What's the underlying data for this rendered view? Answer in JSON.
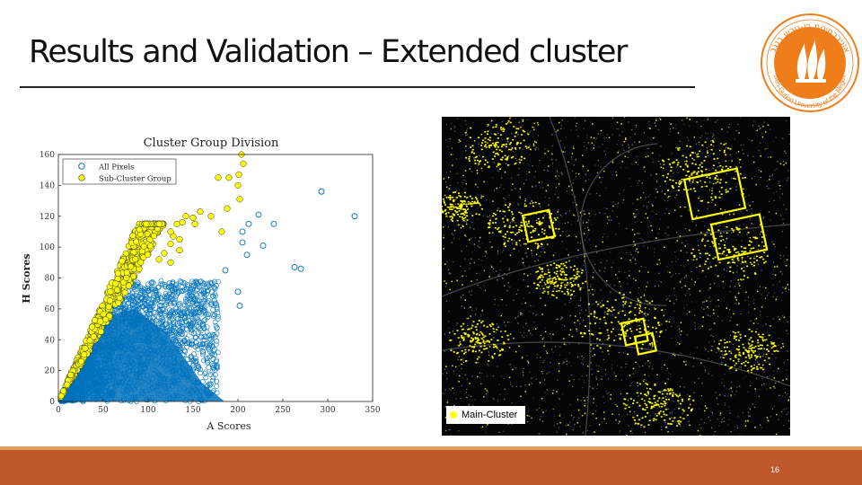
{
  "slide": {
    "title": "Results and Validation – Extended cluster",
    "page_number": "16"
  },
  "logo": {
    "text": "Ben-Gurion University of the Negev",
    "hebrew": "אוניברסיטת בן-גוריון בנגב",
    "color": "#ef7d1a"
  },
  "chart_data": {
    "type": "scatter",
    "title": "Cluster Group Division",
    "xlabel": "A Scores",
    "ylabel": "H Scores",
    "xlim": [
      0,
      350
    ],
    "ylim": [
      0,
      160
    ],
    "xticks": [
      "0",
      "50",
      "100",
      "150",
      "200",
      "250",
      "300",
      "350"
    ],
    "yticks": [
      "0",
      "20",
      "40",
      "60",
      "80",
      "100",
      "120",
      "140",
      "160"
    ],
    "legend_position": "top-left",
    "grid": false,
    "series": [
      {
        "name": "All Pixels",
        "color": "#0072bd",
        "marker": "open-circle",
        "points": [
          [
            205,
            103
          ],
          [
            228,
            101
          ],
          [
            223,
            121
          ],
          [
            240,
            115
          ],
          [
            293,
            136
          ],
          [
            330,
            120
          ],
          [
            270,
            86
          ],
          [
            263,
            87
          ],
          [
            200,
            71
          ],
          [
            202,
            62
          ],
          [
            186,
            85
          ],
          [
            210,
            95
          ],
          [
            212,
            115
          ],
          [
            205,
            110
          ]
        ]
      },
      {
        "name": "Sub-Cluster Group",
        "color": "#ffff00",
        "marker": "filled-circle",
        "points": [
          [
            204,
            160
          ],
          [
            206,
            154
          ],
          [
            201,
            147
          ],
          [
            200,
            140
          ],
          [
            190,
            145
          ],
          [
            202,
            131
          ],
          [
            178,
            145
          ],
          [
            188,
            125
          ],
          [
            158,
            123
          ],
          [
            150,
            119
          ],
          [
            152,
            115
          ],
          [
            142,
            120
          ],
          [
            138,
            116
          ],
          [
            132,
            115
          ],
          [
            135,
            105
          ],
          [
            128,
            107
          ],
          [
            125,
            102
          ],
          [
            125,
            90
          ],
          [
            118,
            96
          ],
          [
            112,
            92
          ],
          [
            135,
            98
          ],
          [
            125,
            110
          ],
          [
            170,
            120
          ],
          [
            182,
            110
          ]
        ]
      }
    ]
  },
  "map": {
    "legend_label": "Main-Cluster",
    "legend_color": "#ffff00"
  },
  "colors": {
    "accent": "#bf572a",
    "accent_light": "#e1a05d",
    "cluster_blue": "#0072bd",
    "cluster_yellow": "#ffff00"
  }
}
